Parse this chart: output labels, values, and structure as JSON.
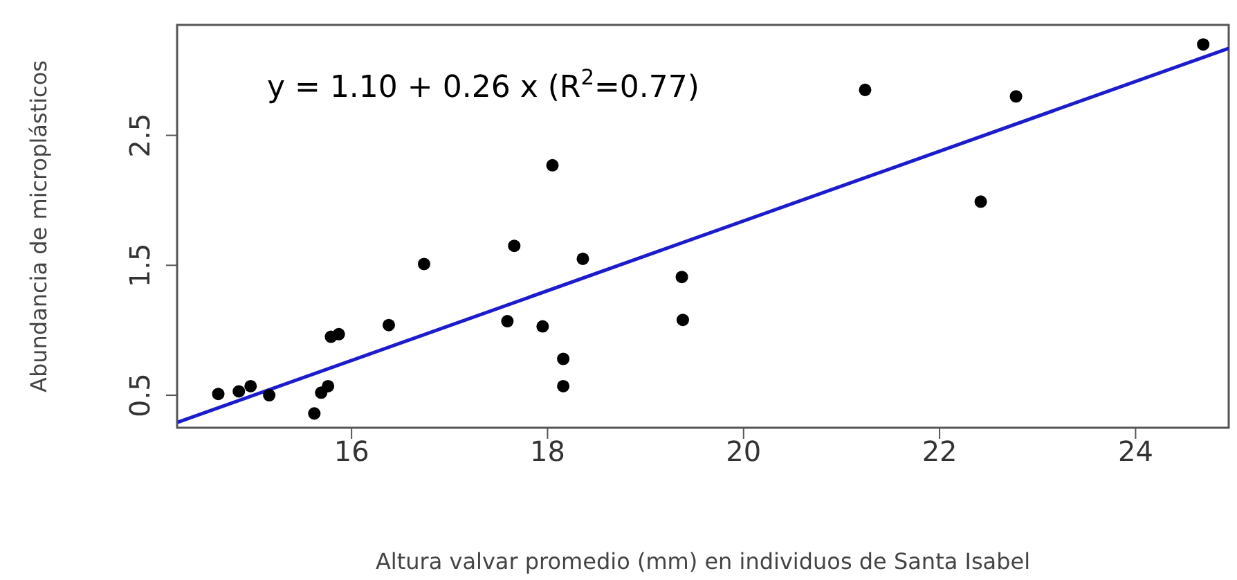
{
  "chart_data": {
    "type": "scatter",
    "xlabel": "Altura valvar promedio (mm) en individuos de Santa Isabel",
    "ylabel": "Abundancia de microplásticos",
    "annotations": [
      "y = 1.10 + 0.26 x (R$^{2}$=0.77)"
    ],
    "xlim": [
      14.22,
      24.95
    ],
    "xticks": [
      16,
      18,
      20,
      22,
      24
    ],
    "ylim": [
      0.25,
      3.35
    ],
    "yticks": [
      0.5,
      1.5,
      2.5
    ],
    "grid": false,
    "marker": "circle",
    "series": [
      {
        "color": "#000000",
        "x": [
          14.64,
          14.85,
          14.97,
          15.16,
          15.62,
          15.69,
          15.76,
          15.79,
          15.87,
          16.38,
          16.74,
          17.59,
          17.66,
          17.95,
          18.05,
          18.16,
          18.16,
          18.36,
          19.37,
          19.38,
          21.24,
          22.42,
          22.78,
          24.69
        ],
        "values": [
          0.51,
          0.53,
          0.57,
          0.5,
          0.36,
          0.52,
          0.57,
          0.95,
          0.97,
          1.04,
          1.51,
          1.07,
          1.65,
          1.03,
          2.27,
          0.78,
          0.57,
          1.55,
          1.41,
          1.08,
          2.85,
          1.99,
          2.8,
          3.2
        ]
      },
      {
        "type": "line",
        "color": "#1c1ccc",
        "marker": "none",
        "x": [
          14.22,
          24.95
        ],
        "values": [
          0.29,
          3.17
        ]
      }
    ]
  }
}
